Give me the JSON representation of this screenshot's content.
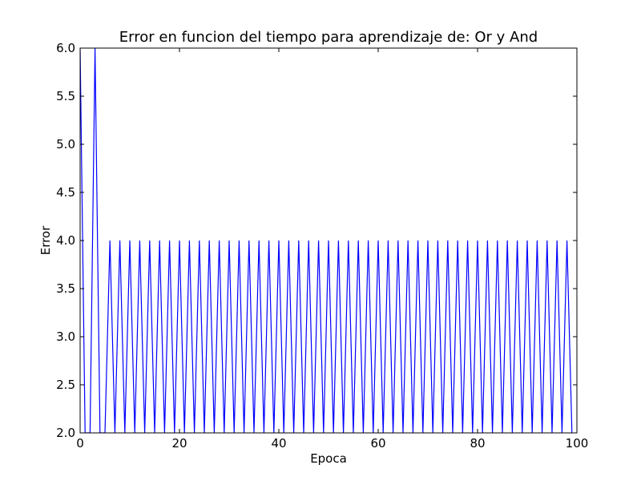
{
  "chart_data": {
    "type": "line",
    "title": "Error en funcion del tiempo para aprendizaje de: Or y And",
    "xlabel": "Epoca",
    "ylabel": "Error",
    "xlim": [
      0,
      100
    ],
    "ylim": [
      2.0,
      6.0
    ],
    "xticks": [
      "0",
      "20",
      "40",
      "60",
      "80",
      "100"
    ],
    "yticks": [
      "2.0",
      "2.5",
      "3.0",
      "3.5",
      "4.0",
      "4.5",
      "5.0",
      "5.5",
      "6.0"
    ],
    "grid": false,
    "series": [
      {
        "color": "#0000ff",
        "x": [
          0,
          1,
          2,
          3,
          4,
          5,
          6,
          7,
          8,
          9,
          10,
          11,
          12,
          13,
          14,
          15,
          16,
          17,
          18,
          19,
          20,
          21,
          22,
          23,
          24,
          25,
          26,
          27,
          28,
          29,
          30,
          31,
          32,
          33,
          34,
          35,
          36,
          37,
          38,
          39,
          40,
          41,
          42,
          43,
          44,
          45,
          46,
          47,
          48,
          49,
          50,
          51,
          52,
          53,
          54,
          55,
          56,
          57,
          58,
          59,
          60,
          61,
          62,
          63,
          64,
          65,
          66,
          67,
          68,
          69,
          70,
          71,
          72,
          73,
          74,
          75,
          76,
          77,
          78,
          79,
          80,
          81,
          82,
          83,
          84,
          85,
          86,
          87,
          88,
          89,
          90,
          91,
          92,
          93,
          94,
          95,
          96,
          97,
          98,
          99
        ],
        "y": [
          6,
          2,
          2,
          6,
          2,
          2,
          4,
          2,
          4,
          2,
          4,
          2,
          4,
          2,
          4,
          2,
          4,
          2,
          4,
          2,
          4,
          2,
          4,
          2,
          4,
          2,
          4,
          2,
          4,
          2,
          4,
          2,
          4,
          2,
          4,
          2,
          4,
          2,
          4,
          2,
          4,
          2,
          4,
          2,
          4,
          2,
          4,
          2,
          4,
          2,
          4,
          2,
          4,
          2,
          4,
          2,
          4,
          2,
          4,
          2,
          4,
          2,
          4,
          2,
          4,
          2,
          4,
          2,
          4,
          2,
          4,
          2,
          4,
          2,
          4,
          2,
          4,
          2,
          4,
          2,
          4,
          2,
          4,
          2,
          4,
          2,
          4,
          2,
          4,
          2,
          4,
          2,
          4,
          2,
          4,
          2,
          4,
          2,
          4,
          2
        ]
      }
    ]
  }
}
